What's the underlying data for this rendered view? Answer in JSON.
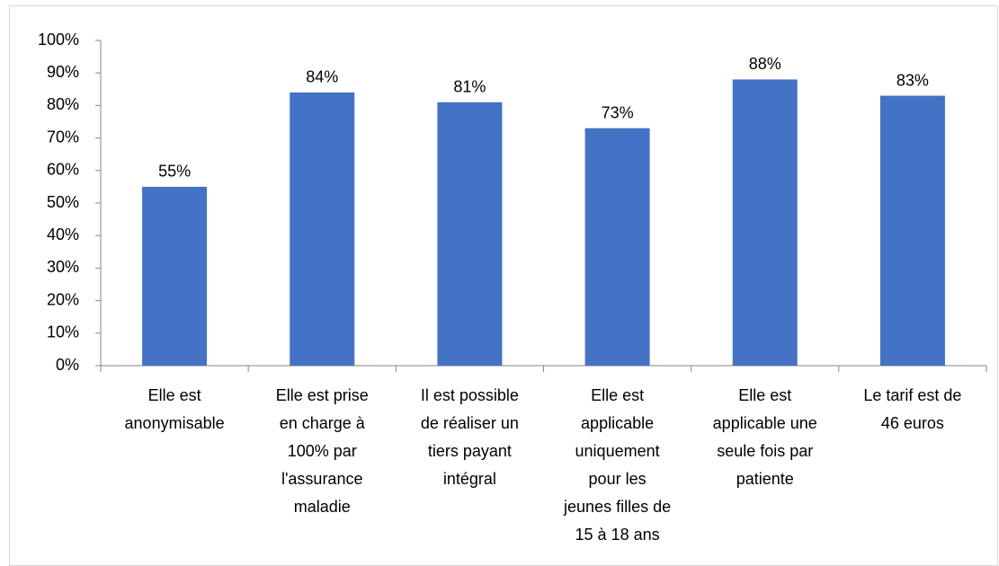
{
  "chart_data": {
    "type": "bar",
    "categories": [
      "Elle est\nanonymisable",
      "Elle est prise\nen charge à\n100% par\nl'assurance\nmaladie",
      "Il est possible\nde réaliser un\ntiers payant\nintégral",
      "Elle est\napplicable\nuniquement\npour les\njeunes filles de\n15 à 18 ans",
      "Elle est\napplicable une\nseule fois par\npatiente",
      "Le tarif est de\n46 euros"
    ],
    "values": [
      55,
      84,
      81,
      73,
      88,
      83
    ],
    "value_labels": [
      "55%",
      "84%",
      "81%",
      "73%",
      "88%",
      "83%"
    ],
    "color": "#4472c4",
    "ylim": [
      0,
      100
    ],
    "yticks": [
      {
        "value": 0,
        "label": "0%"
      },
      {
        "value": 10,
        "label": "10%"
      },
      {
        "value": 20,
        "label": "20%"
      },
      {
        "value": 30,
        "label": "30%"
      },
      {
        "value": 40,
        "label": "40%"
      },
      {
        "value": 50,
        "label": "50%"
      },
      {
        "value": 60,
        "label": "60%"
      },
      {
        "value": 70,
        "label": "70%"
      },
      {
        "value": 80,
        "label": "80%"
      },
      {
        "value": 90,
        "label": "90%"
      },
      {
        "value": 100,
        "label": "100%"
      }
    ],
    "grid": false
  }
}
